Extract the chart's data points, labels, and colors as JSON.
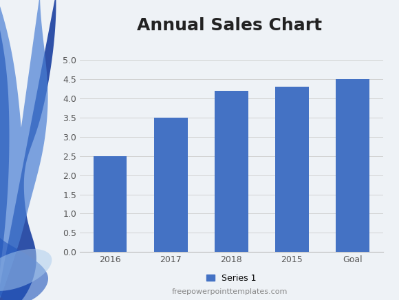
{
  "title": "Annual Sales Chart",
  "categories": [
    "2016",
    "2017",
    "2018",
    "2015",
    "Goal"
  ],
  "values": [
    2.5,
    3.5,
    4.2,
    4.3,
    4.5
  ],
  "bar_color": "#4472C4",
  "ylim": [
    0,
    5
  ],
  "yticks": [
    0,
    0.5,
    1.0,
    1.5,
    2.0,
    2.5,
    3.0,
    3.5,
    4.0,
    4.5,
    5.0
  ],
  "legend_label": "Series 1",
  "footer_text": "freepowerpointtemplates.com",
  "bg_color": "#eef2f6",
  "title_fontsize": 18,
  "tick_fontsize": 9,
  "legend_fontsize": 9,
  "footer_fontsize": 8,
  "wave1_color": "#1a3fa0",
  "wave2_color": "#4a7fd4",
  "wave3_color": "#2255bb",
  "wave4_color": "#aaccee"
}
